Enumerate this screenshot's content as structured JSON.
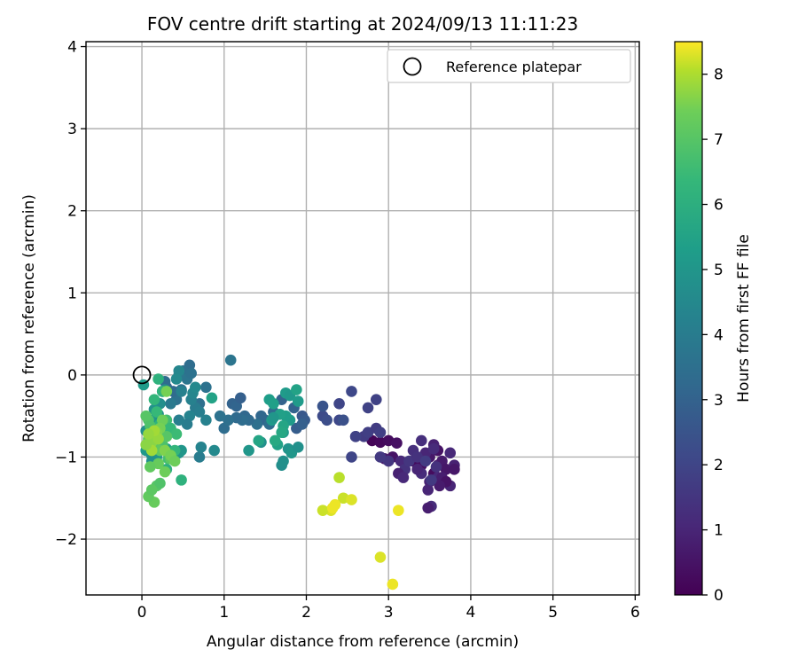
{
  "chart_data": {
    "type": "scatter",
    "title": "FOV centre drift starting at 2024/09/13 11:11:23",
    "xlabel": "Angular distance from reference (arcmin)",
    "ylabel": "Rotation from reference (arcmin)",
    "xlim": [
      -0.68,
      6.05
    ],
    "ylim": [
      -2.68,
      4.06
    ],
    "xticks": [
      "0",
      "1",
      "2",
      "3",
      "4",
      "5",
      "6"
    ],
    "yticks": [
      "−2",
      "−1",
      "0",
      "1",
      "2",
      "3",
      "4"
    ],
    "grid": true,
    "legend": {
      "label": "Reference platepar",
      "placement": "top-right"
    },
    "reference_point": {
      "x": 0,
      "y": 0
    },
    "colorbar": {
      "label": "Hours from first FF file",
      "colormap": "viridis",
      "min": 0,
      "max": 8.5,
      "ticks": [
        "0",
        "1",
        "2",
        "3",
        "4",
        "5",
        "6",
        "7",
        "8"
      ]
    },
    "series": [
      {
        "points": [
          [
            2.8,
            -0.8,
            0.1
          ],
          [
            2.9,
            -0.82,
            0.2
          ],
          [
            3.0,
            -0.8,
            0.3
          ],
          [
            3.1,
            -0.83,
            0.4
          ],
          [
            3.05,
            -1.0,
            0.5
          ],
          [
            2.95,
            -1.02,
            0.7
          ],
          [
            3.3,
            -1.05,
            0.2
          ],
          [
            3.4,
            -1.1,
            0.4
          ],
          [
            3.5,
            -1.0,
            0.6
          ],
          [
            3.55,
            -1.2,
            0.3
          ],
          [
            3.6,
            -1.1,
            0.8
          ],
          [
            3.5,
            -1.3,
            0.9
          ],
          [
            3.45,
            -0.95,
            1.0
          ],
          [
            3.6,
            -0.92,
            0.5
          ],
          [
            3.65,
            -1.05,
            0.7
          ],
          [
            3.7,
            -1.15,
            0.6
          ],
          [
            3.55,
            -0.85,
            0.9
          ],
          [
            3.48,
            -1.4,
            1.0
          ],
          [
            3.52,
            -1.6,
            1.2
          ],
          [
            3.48,
            -1.62,
            0.8
          ],
          [
            3.75,
            -0.95,
            1.1
          ],
          [
            3.8,
            -1.1,
            0.9
          ],
          [
            3.8,
            -1.15,
            0.6
          ],
          [
            3.75,
            -1.35,
            1.0
          ],
          [
            3.6,
            -1.25,
            1.1
          ],
          [
            3.4,
            -1.2,
            1.2
          ],
          [
            3.3,
            -0.92,
            1.3
          ],
          [
            3.15,
            -1.05,
            1.1
          ],
          [
            3.2,
            -1.15,
            1.4
          ],
          [
            3.25,
            -1.05,
            1.5
          ],
          [
            3.12,
            -1.2,
            0.9
          ],
          [
            3.18,
            -1.25,
            1.1
          ],
          [
            3.35,
            -1.0,
            1.4
          ],
          [
            3.4,
            -0.8,
            1.3
          ],
          [
            3.55,
            -0.9,
            1.2
          ],
          [
            3.35,
            -1.15,
            1.0
          ],
          [
            3.65,
            -1.25,
            0.8
          ],
          [
            3.7,
            -1.3,
            0.5
          ],
          [
            3.62,
            -1.35,
            0.7
          ],
          [
            3.58,
            -1.12,
            1.4
          ],
          [
            3.52,
            -1.28,
            1.6
          ],
          [
            3.45,
            -1.05,
            1.7
          ],
          [
            3.0,
            -1.05,
            1.5
          ],
          [
            2.9,
            -1.0,
            1.6
          ],
          [
            2.6,
            -0.75,
            1.6
          ],
          [
            2.7,
            -0.75,
            1.7
          ],
          [
            2.75,
            -0.7,
            1.8
          ],
          [
            2.85,
            -0.65,
            1.7
          ],
          [
            2.9,
            -0.7,
            1.8
          ],
          [
            2.85,
            -0.3,
            1.9
          ],
          [
            2.75,
            -0.4,
            1.9
          ],
          [
            2.4,
            -0.35,
            2.0
          ],
          [
            2.55,
            -0.2,
            2.1
          ],
          [
            2.6,
            -0.75,
            1.9
          ],
          [
            2.55,
            -1.0,
            2.0
          ],
          [
            2.4,
            -0.55,
            2.1
          ],
          [
            2.2,
            -0.5,
            2.2
          ],
          [
            2.25,
            -0.55,
            2.3
          ],
          [
            2.45,
            -0.55,
            2.4
          ],
          [
            2.2,
            -0.38,
            2.5
          ],
          [
            1.95,
            -0.5,
            2.6
          ],
          [
            1.98,
            -0.55,
            2.7
          ],
          [
            1.88,
            -0.65,
            2.8
          ],
          [
            1.95,
            -0.6,
            2.9
          ],
          [
            1.85,
            -0.4,
            3.0
          ],
          [
            1.7,
            -0.3,
            3.0
          ],
          [
            1.5,
            -0.55,
            3.1
          ],
          [
            1.45,
            -0.5,
            3.2
          ],
          [
            1.6,
            -0.45,
            3.3
          ],
          [
            1.55,
            -0.6,
            3.4
          ],
          [
            1.4,
            -0.6,
            3.5
          ],
          [
            1.1,
            -0.35,
            3.0
          ],
          [
            1.15,
            -0.38,
            3.1
          ],
          [
            1.2,
            -0.28,
            2.9
          ],
          [
            1.25,
            -0.5,
            3.2
          ],
          [
            1.3,
            -0.55,
            3.3
          ],
          [
            1.22,
            -0.55,
            3.4
          ],
          [
            1.15,
            -0.52,
            3.3
          ],
          [
            1.0,
            -0.65,
            3.4
          ],
          [
            1.05,
            -0.55,
            3.5
          ],
          [
            0.95,
            -0.5,
            3.6
          ],
          [
            1.08,
            0.18,
            3.7
          ],
          [
            0.78,
            -0.15,
            3.6
          ],
          [
            0.7,
            -0.35,
            3.5
          ],
          [
            0.58,
            0.12,
            3.4
          ],
          [
            0.5,
            0.05,
            3.5
          ],
          [
            0.55,
            -0.05,
            3.7
          ],
          [
            0.6,
            0.02,
            3.6
          ],
          [
            0.45,
            0.0,
            3.8
          ],
          [
            0.48,
            -0.18,
            3.5
          ],
          [
            0.42,
            -0.3,
            3.6
          ],
          [
            0.38,
            -0.2,
            3.3
          ],
          [
            0.3,
            -0.15,
            3.2
          ],
          [
            0.28,
            -0.08,
            3.4
          ],
          [
            0.25,
            -0.2,
            3.5
          ],
          [
            0.35,
            -0.35,
            3.9
          ],
          [
            0.65,
            -0.4,
            4.0
          ],
          [
            0.7,
            -0.45,
            4.1
          ],
          [
            0.78,
            -0.55,
            4.2
          ],
          [
            0.7,
            -1.0,
            4.0
          ],
          [
            0.72,
            -0.88,
            4.3
          ],
          [
            0.88,
            -0.92,
            4.5
          ],
          [
            0.6,
            -0.3,
            4.2
          ],
          [
            0.62,
            -0.22,
            4.4
          ],
          [
            0.65,
            -0.15,
            4.5
          ],
          [
            0.58,
            -0.5,
            4.3
          ],
          [
            0.55,
            -0.6,
            4.0
          ],
          [
            0.45,
            -0.55,
            4.1
          ],
          [
            0.48,
            -0.2,
            4.2
          ],
          [
            0.45,
            0.05,
            4.4
          ],
          [
            0.42,
            -0.05,
            4.5
          ],
          [
            0.28,
            -0.18,
            4.6
          ],
          [
            0.22,
            -0.35,
            4.7
          ],
          [
            0.2,
            -0.48,
            4.8
          ],
          [
            0.18,
            -0.58,
            4.6
          ],
          [
            0.15,
            -0.42,
            4.9
          ],
          [
            0.12,
            -0.55,
            5.0
          ],
          [
            0.05,
            -0.68,
            4.7
          ],
          [
            0.08,
            -0.72,
            4.8
          ],
          [
            0.02,
            -0.12,
            5.2
          ],
          [
            0.05,
            -0.92,
            5.1
          ],
          [
            0.12,
            -0.98,
            4.9
          ],
          [
            0.18,
            -1.0,
            5.0
          ],
          [
            0.12,
            -1.05,
            4.8
          ],
          [
            0.3,
            -0.9,
            5.3
          ],
          [
            0.45,
            -0.95,
            4.9
          ],
          [
            0.48,
            -0.92,
            5.0
          ],
          [
            0.85,
            -0.28,
            5.5
          ],
          [
            1.3,
            -0.92,
            5.0
          ],
          [
            1.45,
            -0.82,
            4.8
          ],
          [
            1.7,
            -1.1,
            4.7
          ],
          [
            1.72,
            -1.05,
            4.8
          ],
          [
            1.78,
            -0.9,
            4.9
          ],
          [
            1.82,
            -0.95,
            5.0
          ],
          [
            1.9,
            -0.88,
            4.8
          ],
          [
            1.72,
            -0.7,
            5.1
          ],
          [
            1.8,
            -0.55,
            5.2
          ],
          [
            1.75,
            -0.5,
            5.3
          ],
          [
            1.68,
            -0.48,
            5.4
          ],
          [
            1.58,
            -0.55,
            5.2
          ],
          [
            1.6,
            -0.52,
            5.0
          ],
          [
            1.55,
            -0.3,
            5.3
          ],
          [
            1.6,
            -0.35,
            5.4
          ],
          [
            1.75,
            -0.22,
            5.2
          ],
          [
            1.8,
            -0.25,
            5.1
          ],
          [
            1.88,
            -0.18,
            5.5
          ],
          [
            1.9,
            -0.32,
            5.2
          ],
          [
            1.72,
            -0.62,
            5.6
          ],
          [
            1.7,
            -0.7,
            5.7
          ],
          [
            1.65,
            -0.85,
            5.5
          ],
          [
            1.62,
            -0.8,
            5.8
          ],
          [
            1.42,
            -0.8,
            5.6
          ],
          [
            0.3,
            -1.15,
            6.0
          ],
          [
            0.25,
            -0.2,
            6.2
          ],
          [
            0.2,
            -0.05,
            6.1
          ],
          [
            0.15,
            -0.3,
            6.3
          ],
          [
            0.18,
            -0.45,
            6.4
          ],
          [
            0.22,
            -0.6,
            6.2
          ],
          [
            0.28,
            -0.68,
            6.5
          ],
          [
            0.3,
            -0.55,
            6.6
          ],
          [
            0.35,
            -0.65,
            6.4
          ],
          [
            0.42,
            -0.72,
            6.5
          ],
          [
            0.4,
            -0.92,
            6.3
          ],
          [
            0.48,
            -1.28,
            6.1
          ],
          [
            0.32,
            -1.02,
            6.7
          ],
          [
            0.25,
            -0.85,
            6.8
          ],
          [
            0.18,
            -0.78,
            6.9
          ],
          [
            0.12,
            -0.7,
            6.6
          ],
          [
            0.1,
            -0.62,
            6.8
          ],
          [
            0.08,
            -0.55,
            6.9
          ],
          [
            0.05,
            -0.5,
            7.0
          ],
          [
            0.08,
            -0.78,
            7.0
          ],
          [
            0.15,
            -0.85,
            7.1
          ],
          [
            0.22,
            -0.92,
            7.2
          ],
          [
            0.3,
            -0.75,
            7.0
          ],
          [
            0.35,
            -1.02,
            7.1
          ],
          [
            0.2,
            -1.08,
            7.3
          ],
          [
            0.1,
            -1.12,
            7.2
          ],
          [
            0.18,
            -1.35,
            7.0
          ],
          [
            0.22,
            -1.32,
            6.9
          ],
          [
            0.15,
            -1.55,
            7.3
          ],
          [
            0.08,
            -1.48,
            7.2
          ],
          [
            0.12,
            -1.4,
            7.1
          ],
          [
            0.28,
            -1.18,
            7.4
          ],
          [
            0.25,
            -0.55,
            7.4
          ],
          [
            0.3,
            -0.2,
            7.5
          ],
          [
            0.22,
            -0.65,
            7.5
          ],
          [
            0.18,
            -0.7,
            7.6
          ],
          [
            0.12,
            -0.82,
            7.7
          ],
          [
            0.28,
            -0.92,
            7.6
          ],
          [
            0.35,
            -0.98,
            7.5
          ],
          [
            0.4,
            -1.05,
            7.4
          ],
          [
            0.2,
            -0.78,
            7.8
          ],
          [
            0.15,
            -0.68,
            7.9
          ],
          [
            0.08,
            -0.72,
            7.8
          ],
          [
            0.12,
            -0.92,
            7.9
          ],
          [
            0.05,
            -0.85,
            7.7
          ],
          [
            2.4,
            -1.25,
            8.1
          ],
          [
            2.45,
            -1.5,
            8.2
          ],
          [
            2.55,
            -1.52,
            8.3
          ],
          [
            2.35,
            -1.58,
            8.4
          ],
          [
            2.3,
            -1.65,
            8.3
          ],
          [
            2.2,
            -1.65,
            8.2
          ],
          [
            2.32,
            -1.62,
            8.4
          ],
          [
            3.12,
            -1.65,
            8.4
          ],
          [
            2.9,
            -2.22,
            8.3
          ],
          [
            3.05,
            -2.55,
            8.4
          ]
        ]
      }
    ]
  }
}
